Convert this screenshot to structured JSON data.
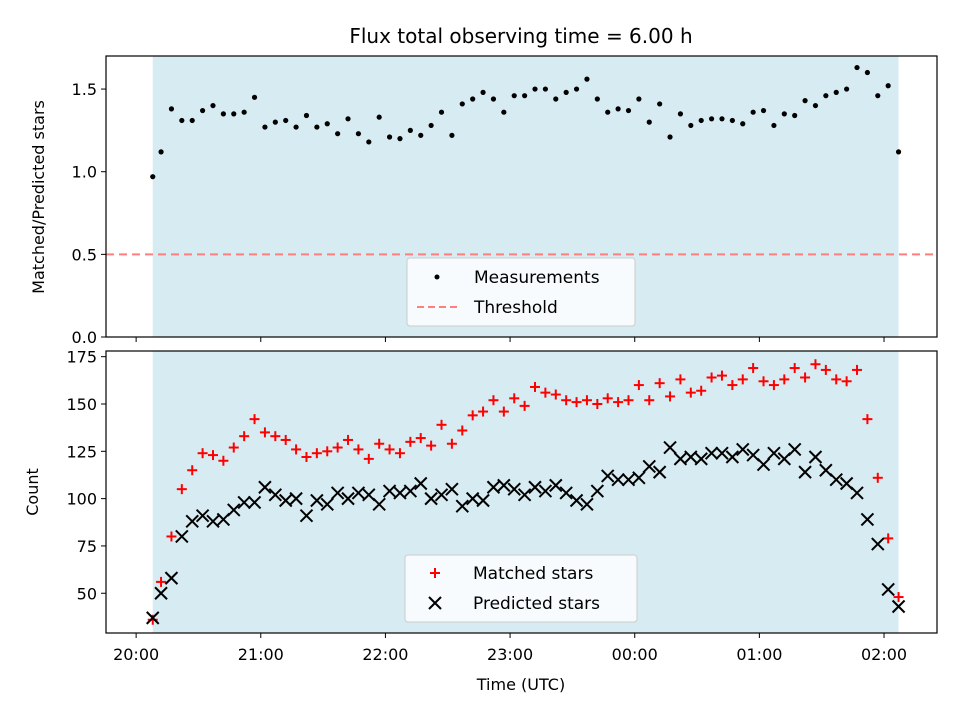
{
  "chart_data": [
    {
      "type": "scatter",
      "title": "Flux total observing time = 6.00 h",
      "ylabel": "Matched/Predicted stars",
      "xlabel": "",
      "ylim": [
        0,
        1.7
      ],
      "yticks": [
        0.0,
        0.5,
        1.0,
        1.5
      ],
      "ytick_labels": [
        "0.0",
        "0.5",
        "1.0",
        "1.5"
      ],
      "grid": false,
      "shaded_interval": [
        "20:08",
        "02:07"
      ],
      "shade_color": "#add8e6",
      "legend_position": "lower-center",
      "series": [
        {
          "name": "Measurements",
          "style": "dot",
          "color": "#000000",
          "x": [
            "20:08",
            "20:12",
            "20:17",
            "20:22",
            "20:27",
            "20:32",
            "20:37",
            "20:42",
            "20:47",
            "20:52",
            "20:57",
            "21:02",
            "21:07",
            "21:12",
            "21:17",
            "21:22",
            "21:27",
            "21:32",
            "21:37",
            "21:42",
            "21:47",
            "21:52",
            "21:57",
            "22:02",
            "22:07",
            "22:12",
            "22:17",
            "22:22",
            "22:27",
            "22:32",
            "22:37",
            "22:42",
            "22:47",
            "22:52",
            "22:57",
            "23:02",
            "23:07",
            "23:12",
            "23:17",
            "23:22",
            "23:27",
            "23:32",
            "23:37",
            "23:42",
            "23:47",
            "23:52",
            "23:57",
            "00:02",
            "00:07",
            "00:12",
            "00:17",
            "00:22",
            "00:27",
            "00:32",
            "00:37",
            "00:42",
            "00:47",
            "00:52",
            "00:57",
            "01:02",
            "01:07",
            "01:12",
            "01:17",
            "01:22",
            "01:27",
            "01:32",
            "01:37",
            "01:42",
            "01:47",
            "01:52",
            "01:57",
            "02:02",
            "02:07"
          ],
          "y": [
            0.97,
            1.12,
            1.38,
            1.31,
            1.31,
            1.37,
            1.4,
            1.35,
            1.35,
            1.36,
            1.45,
            1.27,
            1.3,
            1.31,
            1.27,
            1.34,
            1.27,
            1.29,
            1.23,
            1.32,
            1.23,
            1.18,
            1.33,
            1.21,
            1.2,
            1.25,
            1.22,
            1.28,
            1.36,
            1.22,
            1.41,
            1.44,
            1.48,
            1.44,
            1.36,
            1.46,
            1.46,
            1.5,
            1.5,
            1.44,
            1.48,
            1.5,
            1.56,
            1.44,
            1.36,
            1.38,
            1.37,
            1.44,
            1.3,
            1.41,
            1.21,
            1.35,
            1.28,
            1.31,
            1.32,
            1.32,
            1.31,
            1.29,
            1.36,
            1.37,
            1.28,
            1.35,
            1.34,
            1.43,
            1.4,
            1.46,
            1.48,
            1.5,
            1.63,
            1.6,
            1.46,
            1.52,
            1.12
          ]
        },
        {
          "name": "Threshold",
          "style": "dashed-line",
          "color": "#ff7f7f",
          "y_constant": 0.5
        }
      ]
    },
    {
      "type": "scatter",
      "title": "",
      "ylabel": "Count",
      "xlabel": "Time (UTC)",
      "ylim": [
        29,
        178
      ],
      "yticks": [
        50,
        75,
        100,
        125,
        150,
        175
      ],
      "ytick_labels": [
        "50",
        "75",
        "100",
        "125",
        "150",
        "175"
      ],
      "xtick_labels": [
        "20:00",
        "21:00",
        "22:00",
        "23:00",
        "00:00",
        "01:00",
        "02:00"
      ],
      "xticks": [
        "20:00",
        "21:00",
        "22:00",
        "23:00",
        "00:00",
        "01:00",
        "02:00"
      ],
      "grid": false,
      "shaded_interval": [
        "20:08",
        "02:07"
      ],
      "shade_color": "#add8e6",
      "legend_position": "lower-center",
      "series": [
        {
          "name": "Matched stars",
          "style": "plus",
          "color": "#ff0000",
          "x": [
            "20:08",
            "20:12",
            "20:17",
            "20:22",
            "20:27",
            "20:32",
            "20:37",
            "20:42",
            "20:47",
            "20:52",
            "20:57",
            "21:02",
            "21:07",
            "21:12",
            "21:17",
            "21:22",
            "21:27",
            "21:32",
            "21:37",
            "21:42",
            "21:47",
            "21:52",
            "21:57",
            "22:02",
            "22:07",
            "22:12",
            "22:17",
            "22:22",
            "22:27",
            "22:32",
            "22:37",
            "22:42",
            "22:47",
            "22:52",
            "22:57",
            "23:02",
            "23:07",
            "23:12",
            "23:17",
            "23:22",
            "23:27",
            "23:32",
            "23:37",
            "23:42",
            "23:47",
            "23:52",
            "23:57",
            "00:02",
            "00:07",
            "00:12",
            "00:17",
            "00:22",
            "00:27",
            "00:32",
            "00:37",
            "00:42",
            "00:47",
            "00:52",
            "00:57",
            "01:02",
            "01:07",
            "01:12",
            "01:17",
            "01:22",
            "01:27",
            "01:32",
            "01:37",
            "01:42",
            "01:47",
            "01:52",
            "01:57",
            "02:02",
            "02:07"
          ],
          "y": [
            36,
            56,
            80,
            105,
            115,
            124,
            123,
            120,
            127,
            133,
            142,
            135,
            133,
            131,
            126,
            122,
            124,
            125,
            127,
            131,
            126,
            121,
            129,
            126,
            124,
            130,
            132,
            128,
            139,
            129,
            136,
            144,
            146,
            152,
            146,
            153,
            149,
            159,
            156,
            155,
            152,
            151,
            152,
            150,
            153,
            151,
            152,
            160,
            152,
            161,
            154,
            163,
            156,
            157,
            164,
            165,
            160,
            163,
            169,
            162,
            160,
            163,
            169,
            164,
            171,
            168,
            163,
            162,
            168,
            142,
            111,
            79,
            48
          ]
        },
        {
          "name": "Predicted stars",
          "style": "x",
          "color": "#000000",
          "x": [
            "20:08",
            "20:12",
            "20:17",
            "20:22",
            "20:27",
            "20:32",
            "20:37",
            "20:42",
            "20:47",
            "20:52",
            "20:57",
            "21:02",
            "21:07",
            "21:12",
            "21:17",
            "21:22",
            "21:27",
            "21:32",
            "21:37",
            "21:42",
            "21:47",
            "21:52",
            "21:57",
            "22:02",
            "22:07",
            "22:12",
            "22:17",
            "22:22",
            "22:27",
            "22:32",
            "22:37",
            "22:42",
            "22:47",
            "22:52",
            "22:57",
            "23:02",
            "23:07",
            "23:12",
            "23:17",
            "23:22",
            "23:27",
            "23:32",
            "23:37",
            "23:42",
            "23:47",
            "23:52",
            "23:57",
            "00:02",
            "00:07",
            "00:12",
            "00:17",
            "00:22",
            "00:27",
            "00:32",
            "00:37",
            "00:42",
            "00:47",
            "00:52",
            "00:57",
            "01:02",
            "01:07",
            "01:12",
            "01:17",
            "01:22",
            "01:27",
            "01:32",
            "01:37",
            "01:42",
            "01:47",
            "01:52",
            "01:57",
            "02:02",
            "02:07"
          ],
          "y": [
            37,
            50,
            58,
            80,
            88,
            91,
            88,
            89,
            94,
            98,
            98,
            106,
            102,
            99,
            100,
            91,
            99,
            97,
            103,
            100,
            103,
            102,
            97,
            104,
            103,
            104,
            108,
            100,
            102,
            105,
            96,
            100,
            99,
            106,
            107,
            105,
            102,
            106,
            104,
            107,
            103,
            99,
            97,
            104,
            112,
            110,
            110,
            111,
            117,
            114,
            127,
            121,
            122,
            121,
            124,
            124,
            122,
            126,
            123,
            118,
            124,
            121,
            126,
            114,
            122,
            115,
            110,
            108,
            103,
            89,
            76,
            52,
            43
          ]
        }
      ]
    }
  ]
}
